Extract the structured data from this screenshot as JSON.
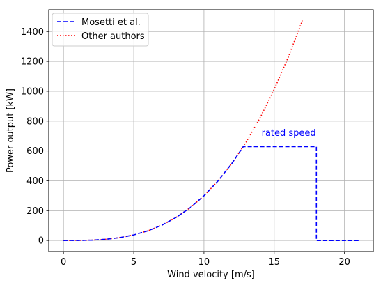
{
  "chart_data": {
    "type": "line",
    "xlabel": "Wind velocity [m/s]",
    "ylabel": "Power output [kW]",
    "xlim": [
      -1.05,
      22.05
    ],
    "ylim": [
      -74,
      1546
    ],
    "xticks": [
      0,
      5,
      10,
      15,
      20
    ],
    "yticks": [
      0,
      200,
      400,
      600,
      800,
      1000,
      1200,
      1400
    ],
    "grid": true,
    "legend_position": "top-left",
    "colors": {
      "mosetti": "#0000ff",
      "other": "#ff0000"
    },
    "series": [
      {
        "name": "Mosetti et al.",
        "style": "dashed",
        "x": [
          0,
          1,
          2,
          3,
          4,
          5,
          6,
          7,
          8,
          9,
          10,
          11,
          12,
          12.8,
          18,
          18,
          21
        ],
        "y": [
          0,
          0.3,
          2.4,
          8.1,
          19.2,
          37.5,
          64.8,
          102.9,
          153.6,
          218.7,
          300.0,
          399.3,
          518.4,
          629.1,
          629.1,
          0,
          0
        ]
      },
      {
        "name": "Other authors",
        "style": "dotted",
        "x": [
          0,
          1,
          2,
          3,
          4,
          5,
          6,
          7,
          8,
          9,
          10,
          11,
          12,
          13,
          14,
          15,
          16,
          17
        ],
        "y": [
          0,
          0.3,
          2.4,
          8.1,
          19.2,
          37.5,
          64.8,
          102.9,
          153.6,
          218.7,
          300.0,
          399.3,
          518.4,
          659.1,
          823.2,
          1012.5,
          1228.8,
          1473.9
        ]
      }
    ],
    "annotations": [
      {
        "text": "rated speed",
        "x": 14.1,
        "y": 700
      }
    ]
  }
}
